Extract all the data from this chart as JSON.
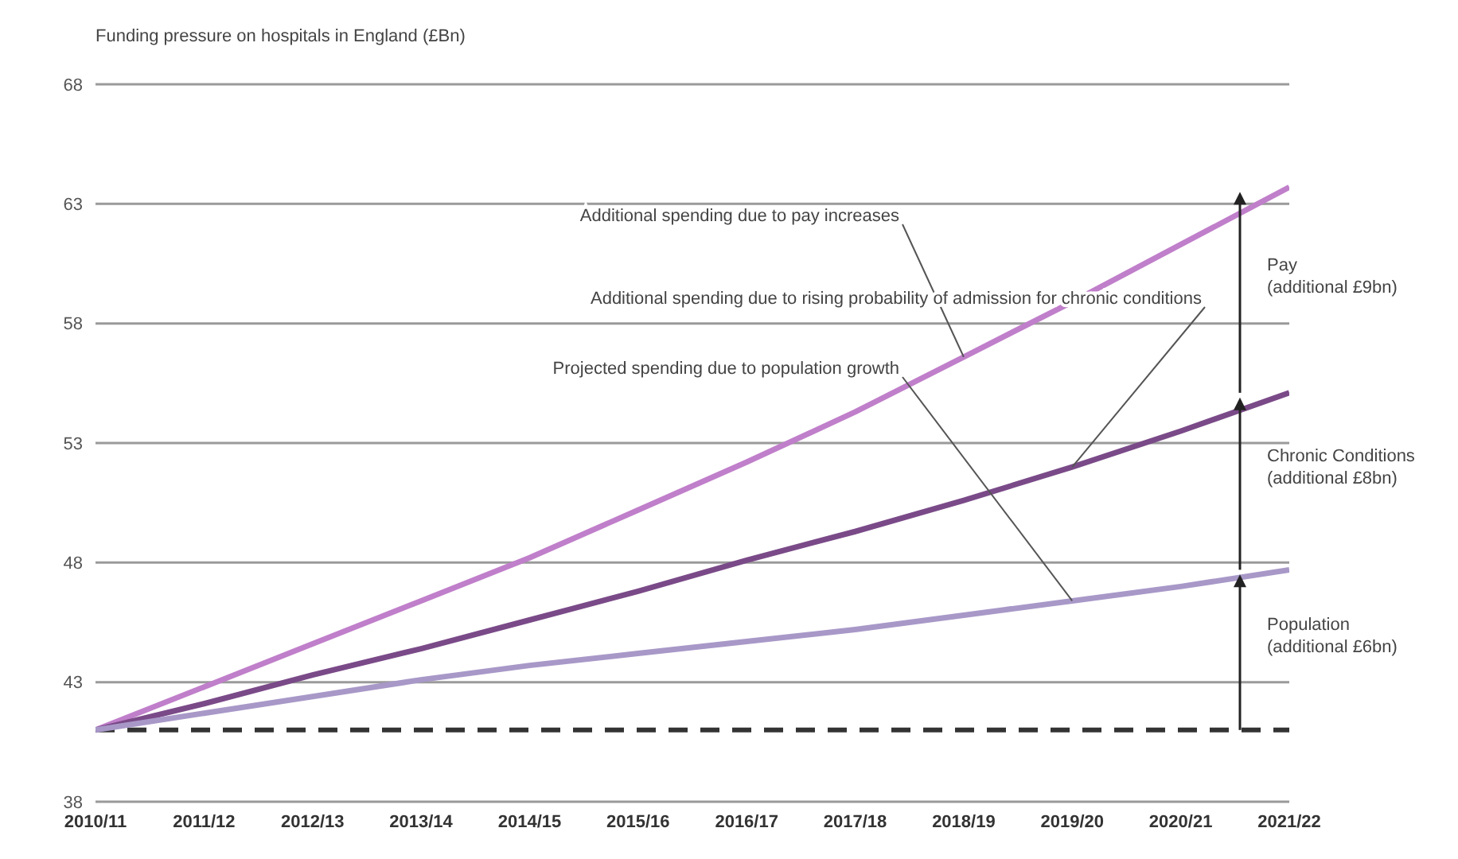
{
  "chart_data": {
    "type": "line",
    "ylabel": "Funding pressure on hospitals in England (£Bn)",
    "categories": [
      "2010/11",
      "2011/12",
      "2012/13",
      "2013/14",
      "2014/15",
      "2015/16",
      "2016/17",
      "2017/18",
      "2018/19",
      "2019/20",
      "2020/21",
      "2021/22"
    ],
    "series": [
      {
        "color": "#c07fca",
        "values": [
          41,
          42.8,
          44.6,
          46.4,
          48.2,
          50.2,
          52.2,
          54.3,
          56.6,
          58.9,
          61.3,
          63.7
        ]
      },
      {
        "color": "#7a4a88",
        "values": [
          41,
          42.1,
          43.3,
          44.4,
          45.6,
          46.8,
          48.1,
          49.3,
          50.6,
          52.0,
          53.5,
          55.1
        ]
      },
      {
        "color": "#a898c8",
        "values": [
          41,
          41.7,
          42.4,
          43.1,
          43.7,
          44.2,
          44.7,
          45.2,
          45.8,
          46.4,
          47.0,
          47.7
        ]
      }
    ],
    "ylim": [
      38,
      68
    ],
    "yticks": [
      38,
      43,
      48,
      53,
      58,
      63,
      68
    ],
    "grid": "y",
    "marker": "none",
    "line_style": "solid",
    "ref_lines": [
      {
        "axis": "y",
        "value": 41,
        "color": "#333333",
        "line_style": "dashed"
      }
    ],
    "annotations": [
      {
        "text": "Additional spending due to pay increases",
        "x": "2018/19",
        "y": 56.6
      },
      {
        "text": "Additional spending due to rising probability of admission for chronic conditions",
        "x": "2019/20",
        "y": 52.0
      },
      {
        "text": "Projected spending due to population growth",
        "x": "2019/20",
        "y": 46.4
      },
      "Pay\n(additional £9bn)",
      "Chronic Conditions\n(additional £8bn)",
      "Population\n(additional £6bn)"
    ]
  }
}
